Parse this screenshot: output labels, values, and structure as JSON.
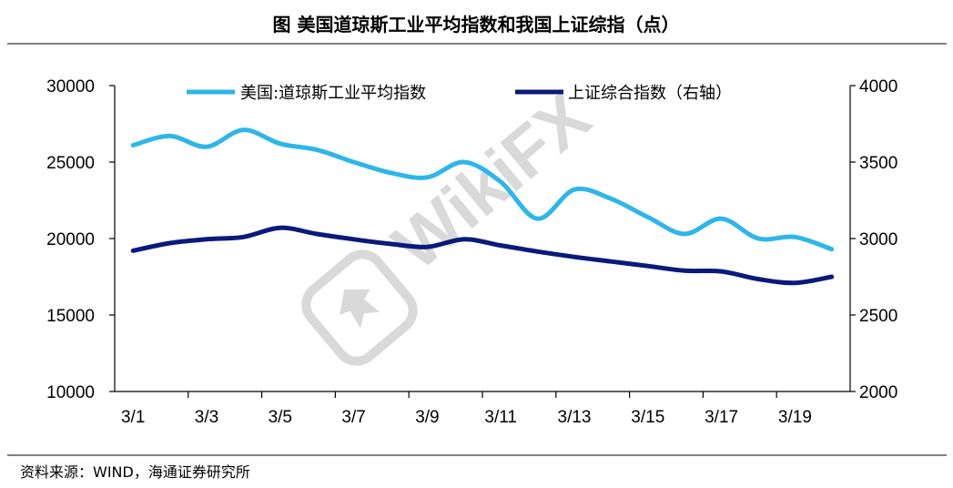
{
  "title": "图  美国道琼斯工业平均指数和我国上证综指（点）",
  "source": "资料来源：WIND，海通证券研究所",
  "watermark": "WikiFX",
  "chart_data": {
    "type": "line",
    "x": [
      "3/1",
      "3/2",
      "3/3",
      "3/4",
      "3/5",
      "3/6",
      "3/7",
      "3/8",
      "3/9",
      "3/10",
      "3/11",
      "3/12",
      "3/13",
      "3/14",
      "3/15",
      "3/16",
      "3/17",
      "3/18",
      "3/19",
      "3/20"
    ],
    "x_tick_labels": [
      "3/1",
      "3/3",
      "3/5",
      "3/7",
      "3/9",
      "3/11",
      "3/13",
      "3/15",
      "3/17",
      "3/19"
    ],
    "series": [
      {
        "name": "美国:道琼斯工业平均指数",
        "axis": "left",
        "color": "#2eb6e8",
        "values": [
          26100,
          26700,
          26000,
          27100,
          26200,
          25800,
          25000,
          24300,
          24000,
          25000,
          23700,
          21300,
          23200,
          22600,
          21400,
          20300,
          21300,
          20000,
          20100,
          19300
        ]
      },
      {
        "name": "上证综合指数（右轴）",
        "axis": "right",
        "color": "#0a1a7a",
        "values": [
          2920,
          2970,
          2995,
          3010,
          3070,
          3030,
          2995,
          2965,
          2945,
          2995,
          2955,
          2915,
          2880,
          2850,
          2820,
          2790,
          2785,
          2735,
          2710,
          2750
        ]
      }
    ],
    "y_left": {
      "range": [
        10000,
        30000
      ],
      "ticks": [
        "10000",
        "15000",
        "20000",
        "25000",
        "30000"
      ]
    },
    "y_right": {
      "range": [
        2000,
        4000
      ],
      "ticks": [
        "2000",
        "2500",
        "3000",
        "3500",
        "4000"
      ]
    },
    "legend_placement": "top",
    "grid": false
  }
}
